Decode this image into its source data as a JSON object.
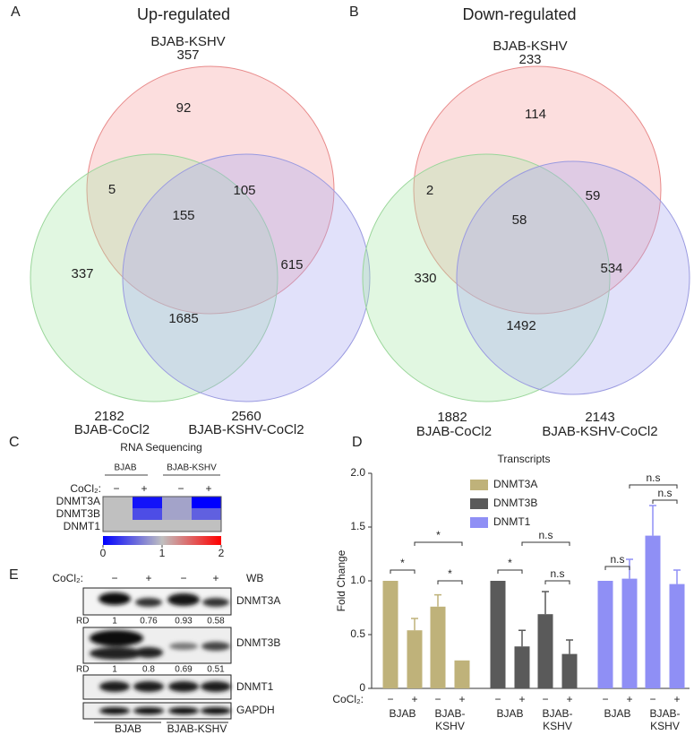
{
  "venn_up": {
    "letter": "A",
    "title": "Up-regulated",
    "sets": [
      {
        "name": "BJAB-KSHV",
        "total": 357
      },
      {
        "name": "BJAB-CoCl2",
        "total": 2182
      },
      {
        "name": "BJAB-KSHV-CoCl2",
        "total": 2560
      }
    ],
    "regions": {
      "kshv_only": 92,
      "kshv_cocl2bjab": 5,
      "kshv_kshvcocl2": 105,
      "all": 155,
      "bjabcocl2_only": 337,
      "kshvcocl2_only": 615,
      "bjabcocl2_kshvcocl2": 1685
    }
  },
  "venn_down": {
    "letter": "B",
    "title": "Down-regulated",
    "sets": [
      {
        "name": "BJAB-KSHV",
        "total": 233
      },
      {
        "name": "BJAB-CoCl2",
        "total": 1882
      },
      {
        "name": "BJAB-KSHV-CoCl2",
        "total": 2143
      }
    ],
    "regions": {
      "kshv_only": 114,
      "kshv_cocl2bjab": 2,
      "kshv_kshvcocl2": 59,
      "all": 58,
      "bjabcocl2_only": 330,
      "kshvcocl2_only": 534,
      "bjabcocl2_kshvcocl2": 1492
    }
  },
  "heatmap": {
    "letter": "C",
    "title": "RNA Sequencing",
    "groups": [
      "BJAB",
      "BJAB-KSHV"
    ],
    "condition_label": "CoCl₂:",
    "conditions": [
      "−",
      "+",
      "−",
      "+"
    ],
    "rows": [
      "DNMT3A",
      "DNMT3B",
      "DNMT1"
    ],
    "values": [
      [
        1,
        0.1,
        0.85,
        0
      ],
      [
        1,
        0.4,
        0.85,
        0.5
      ],
      [
        1,
        1,
        1,
        1
      ]
    ],
    "clim": [
      0,
      2
    ],
    "colorbar_ticks": [
      0,
      1,
      2
    ]
  },
  "western_blot": {
    "letter": "E",
    "condition_label": "CoCl₂:",
    "conditions": [
      "−",
      "+",
      "−",
      "+"
    ],
    "method": "WB",
    "rows": [
      "DNMT3A",
      "DNMT3B",
      "DNMT1",
      "GAPDH"
    ],
    "rd_label": "RD",
    "rd_dnmt3a": [
      "1",
      "0.76",
      "0.93",
      "0.58"
    ],
    "rd_dnmt3b": [
      "1",
      "0.8",
      "0.69",
      "0.51"
    ],
    "groups": [
      "BJAB",
      "BJAB-KSHV"
    ]
  },
  "chart_data": {
    "type": "bar",
    "letter": "D",
    "title": "Transcripts",
    "y_label": "Fold Change",
    "condition_label": "CoCl₂:",
    "conditions": [
      "−",
      "+",
      "−",
      "+"
    ],
    "groups": [
      [
        "BJAB"
      ],
      [
        "BJAB-",
        "KSHV"
      ]
    ],
    "series": [
      {
        "name": "DNMT3A",
        "color": "#bfb27a",
        "values": [
          1.0,
          0.54,
          0.76,
          0.26
        ],
        "errors": [
          null,
          0.11,
          0.11,
          null
        ]
      },
      {
        "name": "DNMT3B",
        "color": "#5a5a5a",
        "values": [
          1.0,
          0.39,
          0.69,
          0.32
        ],
        "errors": [
          null,
          0.15,
          0.21,
          0.13
        ]
      },
      {
        "name": "DNMT1",
        "color": "#8f8ff5",
        "values": [
          1.0,
          1.02,
          1.42,
          0.97
        ],
        "errors": [
          null,
          0.18,
          0.28,
          0.13
        ]
      }
    ],
    "annotations": [
      "*",
      "*",
      "*",
      "*",
      "n.s",
      "n.s",
      "n.s",
      "n.s",
      "n.s"
    ],
    "ylim": [
      0,
      2
    ],
    "yticks": [
      0,
      0.5,
      {
        "value": 1,
        "label": "1.0"
      },
      1.5,
      {
        "value": 2,
        "label": "2.0"
      }
    ]
  }
}
